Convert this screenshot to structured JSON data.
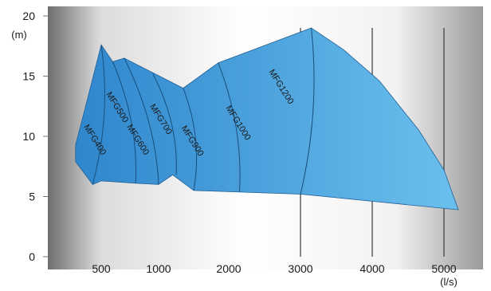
{
  "chart_data": {
    "type": "area",
    "title": "",
    "xlabel": "(l/s)",
    "ylabel": "(m)",
    "x_ticks": [
      "500",
      "1000",
      "2000",
      "3000",
      "4000",
      "5000"
    ],
    "y_ticks": [
      "0",
      "5",
      "10",
      "15",
      "20"
    ],
    "ylim": [
      0,
      20
    ],
    "grid": "vertical",
    "background_colors": [
      "#6e6e6e",
      "#ffffff"
    ],
    "fill_colors": [
      "#2f86cc",
      "#6cc0ee"
    ],
    "envelope": [
      {
        "x": "350",
        "y": 9.3
      },
      {
        "x": "400",
        "y": 12.0
      },
      {
        "x": "500",
        "y": 17.6
      },
      {
        "x": "600",
        "y": 16.2
      },
      {
        "x": "700",
        "y": 16.5
      },
      {
        "x": "1350",
        "y": 14.0
      },
      {
        "x": "1850",
        "y": 16.1
      },
      {
        "x": "3150",
        "y": 19.0
      },
      {
        "x": "3600",
        "y": 17.2
      },
      {
        "x": "4100",
        "y": 14.6
      },
      {
        "x": "4650",
        "y": 10.5
      },
      {
        "x": "5000",
        "y": 7.2
      },
      {
        "x": "5200",
        "y": 3.9
      },
      {
        "x": "3000",
        "y": 5.2
      },
      {
        "x": "1500",
        "y": 5.5
      },
      {
        "x": "1200",
        "y": 6.8
      },
      {
        "x": "1000",
        "y": 6.0
      },
      {
        "x": "800",
        "y": 6.1
      },
      {
        "x": "500",
        "y": 6.3
      },
      {
        "x": "450",
        "y": 6.0
      },
      {
        "x": "350",
        "y": 7.9
      }
    ],
    "regions": [
      {
        "name": "MFG400",
        "top": {
          "x": "500",
          "y": 17.6
        },
        "bottom": {
          "x": "450",
          "y": 6.0
        }
      },
      {
        "name": "MFG500",
        "top": {
          "x": "600",
          "y": 16.2
        },
        "bottom": {
          "x": "800",
          "y": 6.1
        }
      },
      {
        "name": "MFG600",
        "top": {
          "x": "700",
          "y": 16.5
        },
        "bottom": {
          "x": "1000",
          "y": 6.0
        }
      },
      {
        "name": "MFG700",
        "top": {
          "x": "950",
          "y": 15.2
        },
        "bottom": {
          "x": "1250",
          "y": 6.8
        }
      },
      {
        "name": "MFG900",
        "top": {
          "x": "1350",
          "y": 14.0
        },
        "bottom": {
          "x": "1500",
          "y": 5.5
        }
      },
      {
        "name": "MFG1000",
        "top": {
          "x": "1850",
          "y": 16.1
        },
        "bottom": {
          "x": "2150",
          "y": 5.4
        }
      },
      {
        "name": "MFG1200",
        "top": {
          "x": "3150",
          "y": 19.0
        },
        "bottom": {
          "x": "3000",
          "y": 5.2
        }
      }
    ]
  }
}
